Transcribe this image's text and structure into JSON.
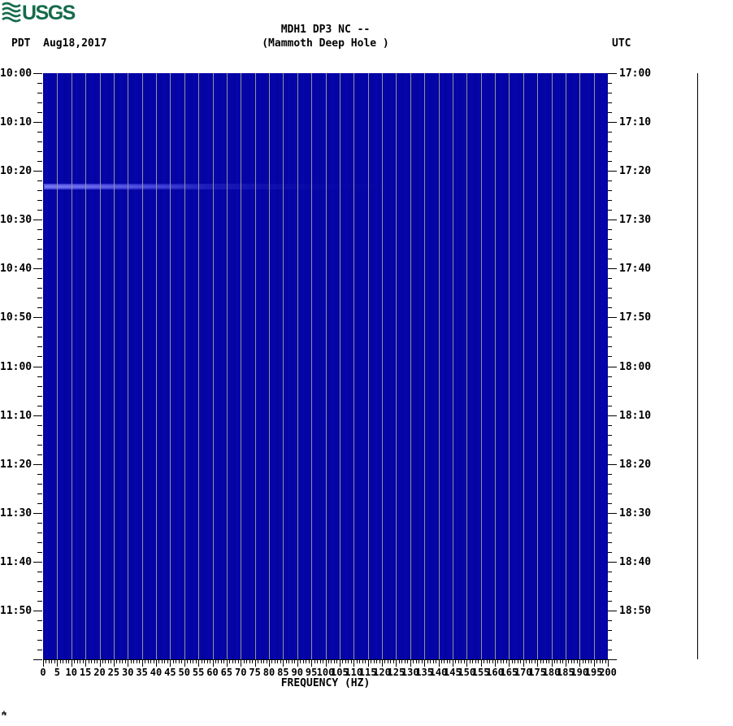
{
  "header": {
    "logo_text": "USGS",
    "logo_color": "#156b4b",
    "timezone_left": "PDT",
    "date": "Aug18,2017",
    "title_line1": "MDH1 DP3 NC --",
    "title_line2": "(Mammoth Deep Hole )",
    "timezone_right": "UTC"
  },
  "chart_data": {
    "type": "heatmap",
    "subtype": "seismic-spectrogram",
    "title": "MDH1 DP3 NC -- (Mammoth Deep Hole )",
    "station": "MDH1 DP3 NC",
    "station_description": "Mammoth Deep Hole",
    "date": "Aug18,2017",
    "xlabel": "FREQUENCY (HZ)",
    "x_range_hz": [
      0,
      200
    ],
    "x_major_tick_step_hz": 5,
    "x_minor_tick_step_hz": 1,
    "x_tick_labels": [
      "0",
      "5",
      "10",
      "15",
      "20",
      "25",
      "30",
      "35",
      "40",
      "45",
      "50",
      "55",
      "60",
      "65",
      "70",
      "75",
      "80",
      "85",
      "90",
      "95",
      "100",
      "105",
      "110",
      "115",
      "120",
      "125",
      "130",
      "135",
      "140",
      "145",
      "150",
      "155",
      "160",
      "165",
      "170",
      "175",
      "180",
      "185",
      "190",
      "195",
      "200"
    ],
    "y_left_timezone": "PDT",
    "y_right_timezone": "UTC",
    "y_time_start_pdt": "10:00",
    "y_time_end_pdt": "12:00",
    "y_time_start_utc": "17:00",
    "y_time_end_utc": "19:00",
    "y_major_tick_step_min": 10,
    "y_minor_tick_step_min": 2,
    "y_left_ticks": [
      "10:00",
      "10:10",
      "10:20",
      "10:30",
      "10:40",
      "10:50",
      "11:00",
      "11:10",
      "11:20",
      "11:30",
      "11:40",
      "11:50"
    ],
    "y_right_ticks": [
      "17:00",
      "17:10",
      "17:20",
      "17:30",
      "17:40",
      "17:50",
      "18:00",
      "18:10",
      "18:20",
      "18:30",
      "18:40",
      "18:50"
    ],
    "grid": "vertical lines every 5 Hz",
    "background_color": "#0404a8",
    "gridline_color": "#949494",
    "events": [
      {
        "time_pdt": "10:23",
        "time_utc": "17:23",
        "freq_extent_hz": [
          0,
          120
        ],
        "intensity": "faint",
        "description": "weak broadband energy band, strongest 0-40 Hz, fading toward higher frequencies",
        "color": "#5f5fee"
      }
    ],
    "legend": "none",
    "notes": "rest of spectrogram is uniform low-amplitude background (solid dark blue)"
  }
}
